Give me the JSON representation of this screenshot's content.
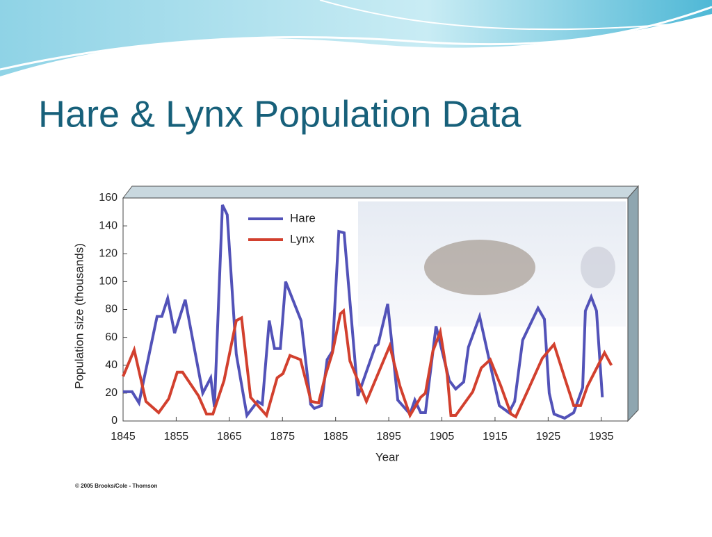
{
  "chart_data": {
    "type": "line",
    "title": "Hare & Lynx Population Data",
    "xlabel": "Year",
    "ylabel": "Population size (thousands)",
    "credit": "© 2005 Brooks/Cole - Thomson",
    "xlim": [
      1845,
      1940
    ],
    "xticks": [
      1845,
      1855,
      1865,
      1875,
      1885,
      1895,
      1905,
      1915,
      1925,
      1935
    ],
    "ylim": [
      0,
      160
    ],
    "yticks": [
      0,
      20,
      40,
      60,
      80,
      100,
      120,
      140,
      160
    ],
    "grid": false,
    "legend": "top-left",
    "series": [
      {
        "name": "Hare",
        "color": "#5252b8",
        "x": [
          1845,
          1846.7,
          1848,
          1851.4,
          1852.3,
          1853.4,
          1854.7,
          1856.7,
          1860,
          1861.5,
          1862.2,
          1863.7,
          1864.6,
          1866.3,
          1868.3,
          1870.3,
          1871.2,
          1872.5,
          1873.5,
          1874.6,
          1875.6,
          1878.5,
          1880.3,
          1881,
          1882.3,
          1883.4,
          1884.4,
          1885.6,
          1886.6,
          1889.2,
          1892.5,
          1893,
          1894.8,
          1896.7,
          1899,
          1899.9,
          1901,
          1901.9,
          1903.9,
          1906.4,
          1907.6,
          1909.1,
          1910,
          1912.1,
          1915.8,
          1916.9,
          1917.6,
          1918.7,
          1920.2,
          1923.1,
          1924.3,
          1925.2,
          1926.1,
          1928.1,
          1929.8,
          1931.5,
          1932,
          1933.1,
          1934.1,
          1935.2
        ],
        "values": [
          21,
          21,
          13,
          75,
          75,
          88,
          63,
          87,
          20,
          31,
          10,
          155,
          148,
          48,
          4,
          14,
          12,
          72,
          52,
          52,
          100,
          72,
          12,
          9,
          11,
          44,
          50,
          136,
          135,
          18,
          54,
          55,
          84,
          15,
          5,
          15,
          6,
          6,
          68,
          29,
          23,
          28,
          53,
          75,
          11,
          8,
          6,
          14,
          58,
          81,
          73,
          20,
          5,
          2,
          6,
          24,
          79,
          89,
          79,
          17
        ]
      },
      {
        "name": "Lynx",
        "color": "#d2402e",
        "x": [
          1845,
          1847.1,
          1849.3,
          1851.7,
          1853.6,
          1855.2,
          1856.2,
          1859.2,
          1860.7,
          1861.9,
          1864,
          1866.3,
          1867.3,
          1869,
          1872,
          1874,
          1875.1,
          1876.4,
          1878.4,
          1880.4,
          1881.8,
          1883.1,
          1884.4,
          1885.9,
          1886.5,
          1887.7,
          1890.8,
          1895.2,
          1897.1,
          1899,
          1901,
          1901.9,
          1903.3,
          1904.7,
          1906,
          1906.7,
          1907.6,
          1910.8,
          1912.4,
          1914.1,
          1916.1,
          1918,
          1918.9,
          1921.3,
          1923.9,
          1926.1,
          1928.1,
          1929.8,
          1931.1,
          1932.4,
          1935.6,
          1936.9
        ],
        "values": [
          32,
          51,
          14,
          6,
          16,
          35,
          35,
          18,
          5,
          5,
          29,
          72,
          74,
          17,
          4,
          31,
          34,
          47,
          44,
          14,
          13,
          33,
          49,
          77,
          79,
          43,
          14,
          54,
          25,
          4,
          17,
          20,
          50,
          64,
          33,
          4,
          4,
          21,
          38,
          44,
          25,
          5,
          3,
          23,
          45,
          55,
          31,
          11,
          11,
          25,
          49,
          40
        ]
      }
    ]
  }
}
